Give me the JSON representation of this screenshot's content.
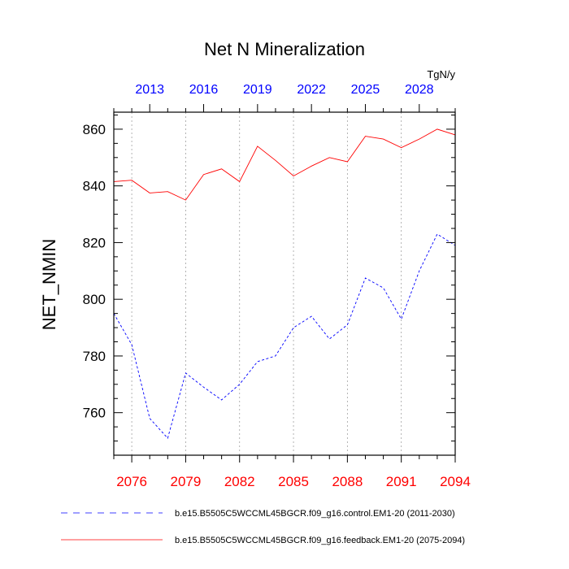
{
  "chart_data": {
    "type": "line",
    "title": "Net N Mineralization",
    "units": "TgN/y",
    "ylabel": "NET_NMIN",
    "xlabel": "",
    "ylim": [
      745,
      866
    ],
    "yticks": [
      760,
      780,
      800,
      820,
      840,
      860
    ],
    "bottom_axis": {
      "range": [
        2075,
        2094
      ],
      "tick_labels": [
        "2076",
        "2079",
        "2082",
        "2085",
        "2088",
        "2091",
        "2094"
      ],
      "label_color": "#ff0000"
    },
    "top_axis": {
      "range": [
        2011,
        2030
      ],
      "tick_labels": [
        "2013",
        "2016",
        "2019",
        "2022",
        "2025",
        "2028"
      ],
      "label_color": "#0000ff"
    },
    "grid": "vertical dotted at labeled bottom ticks",
    "series": [
      {
        "name": "b.e15.B5505C5WCCML45BGCR.f09_g16.control.EM1-20 (2011-2030)",
        "axis": "top",
        "color": "#0000ff",
        "dash": "dashed",
        "x": [
          2011,
          2012,
          2013,
          2014,
          2015,
          2016,
          2017,
          2018,
          2019,
          2020,
          2021,
          2022,
          2023,
          2024,
          2025,
          2026,
          2027,
          2028,
          2029,
          2030
        ],
        "values": [
          795,
          784,
          758,
          751,
          774,
          769,
          764.5,
          770,
          778,
          780,
          790,
          794,
          786,
          791,
          807.5,
          804,
          793,
          810,
          823,
          819
        ]
      },
      {
        "name": "b.e15.B5505C5WCCML45BGCR.f09_g16.feedback.EM1-20 (2075-2094)",
        "axis": "bottom",
        "color": "#ff0000",
        "dash": "solid",
        "x": [
          2075,
          2076,
          2077,
          2078,
          2079,
          2080,
          2081,
          2082,
          2083,
          2084,
          2085,
          2086,
          2087,
          2088,
          2089,
          2090,
          2091,
          2092,
          2093,
          2094
        ],
        "values": [
          841.5,
          842,
          837.5,
          838,
          835,
          844,
          846,
          841.5,
          854,
          849,
          843.5,
          847,
          850,
          848.5,
          857.5,
          856.5,
          853.5,
          856.5,
          860,
          858
        ]
      }
    ]
  }
}
